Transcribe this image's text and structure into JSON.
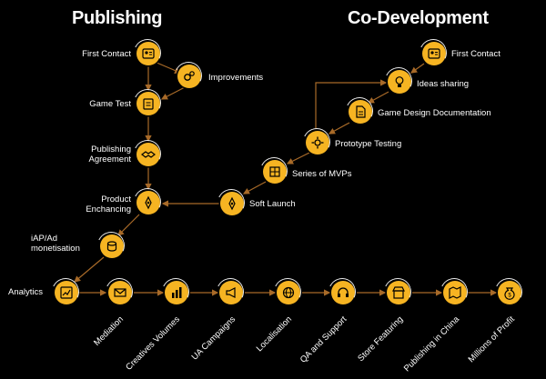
{
  "publishing": {
    "title": "Publishing",
    "steps": [
      "First Contact",
      "Improvements",
      "Game Test",
      "Publishing Agreement",
      "Product Enchancing",
      "iAP/Ad monetisation",
      "Analytics"
    ]
  },
  "codev": {
    "title": "Co-Development",
    "steps": [
      "First Contact",
      "Ideas sharing",
      "Game Design Documentation",
      "Prototype Testing",
      "Series of MVPs",
      "Soft Launch"
    ]
  },
  "bottom": {
    "steps": [
      "Mediation",
      "Creatives Volumes",
      "UA Campaigns",
      "Localisation",
      "QA and Support",
      "Store Featuring",
      "Publishing in China",
      "Millions of Profit"
    ]
  },
  "colors": {
    "accent": "#f6b422",
    "line": "#a86a28",
    "background": "#000000"
  }
}
